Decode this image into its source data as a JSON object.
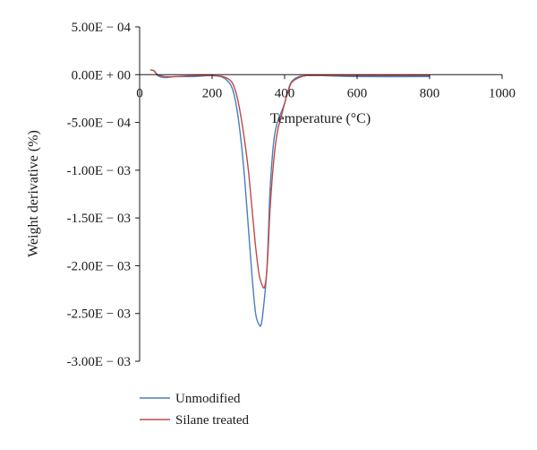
{
  "chart_data": {
    "type": "line",
    "title": "",
    "xlabel": "Temperature (°C)",
    "ylabel": "Weight derivative (%)",
    "xlim": [
      0,
      1000
    ],
    "ylim": [
      -0.003,
      0.0005
    ],
    "x_ticks": [
      0,
      200,
      400,
      600,
      800,
      1000
    ],
    "x_tick_labels": [
      "0",
      "200",
      "400",
      "600",
      "800",
      "1000"
    ],
    "y_ticks": [
      0.0005,
      0,
      -0.0005,
      -0.001,
      -0.0015,
      -0.002,
      -0.0025,
      -0.003
    ],
    "y_tick_labels": [
      "5.00E − 04",
      "0.00E + 00",
      "-5.00E − 04",
      "-1.00E − 03",
      "-1.50E − 03",
      "-2.00E − 03",
      "-2.50E − 03",
      "-3.00E − 03"
    ],
    "grid": false,
    "legend_position": "bottom-left",
    "series": [
      {
        "name": "Unmodified",
        "color": "#4a7ebb",
        "x": [
          30,
          40,
          50,
          70,
          100,
          150,
          200,
          230,
          250,
          260,
          270,
          280,
          290,
          300,
          310,
          320,
          330,
          335,
          340,
          350,
          355,
          360,
          370,
          380,
          390,
          400,
          410,
          420,
          440,
          460,
          500,
          600,
          800
        ],
        "y": [
          5e-05,
          4e-05,
          -1e-05,
          -3e-05,
          -2e-05,
          -2e-05,
          -1e-05,
          -3e-05,
          -0.0001,
          -0.0002,
          -0.0004,
          -0.0007,
          -0.0011,
          -0.0016,
          -0.0021,
          -0.0025,
          -0.00262,
          -0.00262,
          -0.0025,
          -0.0021,
          -0.0017,
          -0.0012,
          -0.0007,
          -0.0005,
          -0.0004,
          -0.0003,
          -0.00016,
          -7e-05,
          -2e-05,
          -1e-05,
          -1e-05,
          -2e-05,
          -2e-05
        ]
      },
      {
        "name": "Silane treated",
        "color": "#be4b48",
        "x": [
          30,
          40,
          50,
          70,
          100,
          150,
          200,
          230,
          250,
          260,
          270,
          280,
          290,
          300,
          310,
          320,
          330,
          340,
          345,
          350,
          355,
          360,
          370,
          380,
          390,
          400,
          410,
          420,
          440,
          460,
          500,
          600,
          800
        ],
        "y": [
          5e-05,
          4e-05,
          0.0,
          -2e-05,
          -2e-05,
          -1e-05,
          -1e-05,
          -2e-05,
          -6e-05,
          -0.00012,
          -0.00025,
          -0.00045,
          -0.0007,
          -0.001,
          -0.0014,
          -0.0018,
          -0.0021,
          -0.00222,
          -0.00222,
          -0.0021,
          -0.0018,
          -0.0014,
          -0.0009,
          -0.0006,
          -0.00045,
          -0.0003,
          -0.00017,
          -8e-05,
          -3e-05,
          -1e-05,
          -1e-05,
          -1e-05,
          -1e-05
        ]
      }
    ]
  }
}
